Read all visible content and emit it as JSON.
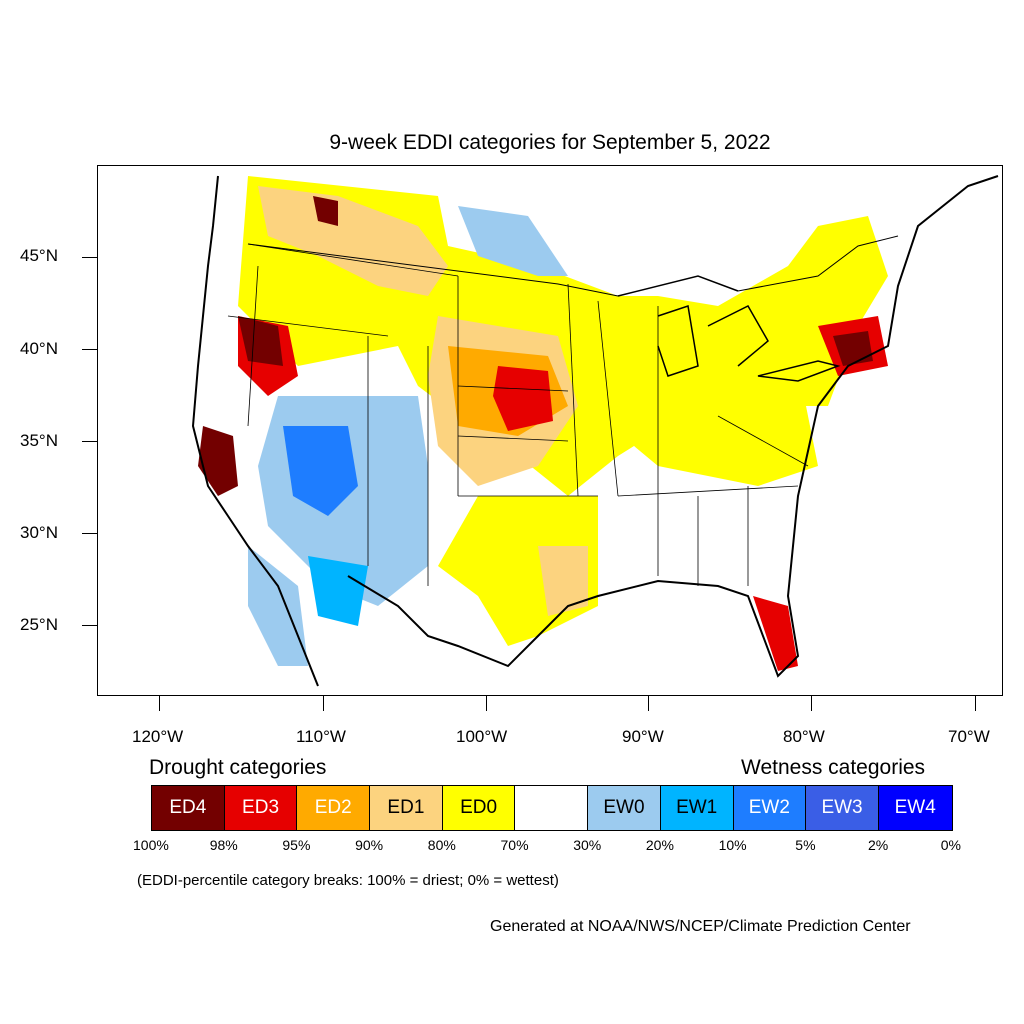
{
  "title": "9-week EDDI categories for September 5, 2022",
  "lat_labels": [
    "45°N",
    "40°N",
    "35°N",
    "30°N",
    "25°N"
  ],
  "lon_labels": [
    "120°W",
    "110°W",
    "100°W",
    "90°W",
    "80°W",
    "70°W"
  ],
  "legend": {
    "drought_heading": "Drought categories",
    "wetness_heading": "Wetness categories",
    "categories": [
      {
        "label": "ED4",
        "color": "#730000",
        "text_color": "#ffffff"
      },
      {
        "label": "ED3",
        "color": "#e60000",
        "text_color": "#ffffff"
      },
      {
        "label": "ED2",
        "color": "#ffaa00",
        "text_color": "#ffffff"
      },
      {
        "label": "ED1",
        "color": "#fcd37f",
        "text_color": "#000000"
      },
      {
        "label": "ED0",
        "color": "#ffff00",
        "text_color": "#000000"
      },
      {
        "label": "",
        "color": "#ffffff",
        "text_color": "#000000"
      },
      {
        "label": "EW0",
        "color": "#9ccbef",
        "text_color": "#000000"
      },
      {
        "label": "EW1",
        "color": "#00b4ff",
        "text_color": "#000000"
      },
      {
        "label": "EW2",
        "color": "#1e7dff",
        "text_color": "#ffffff"
      },
      {
        "label": "EW3",
        "color": "#3a5ee6",
        "text_color": "#ffffff"
      },
      {
        "label": "EW4",
        "color": "#0000ff",
        "text_color": "#ffffff"
      }
    ],
    "percentiles": [
      "100%",
      "98%",
      "95%",
      "90%",
      "80%",
      "70%",
      "30%",
      "20%",
      "10%",
      "5%",
      "2%",
      "0%"
    ]
  },
  "breaks_note": "(EDDI-percentile category breaks: 100% = driest; 0% = wettest)",
  "credit": "Generated at NOAA/NWS/NCEP/Climate Prediction Center"
}
